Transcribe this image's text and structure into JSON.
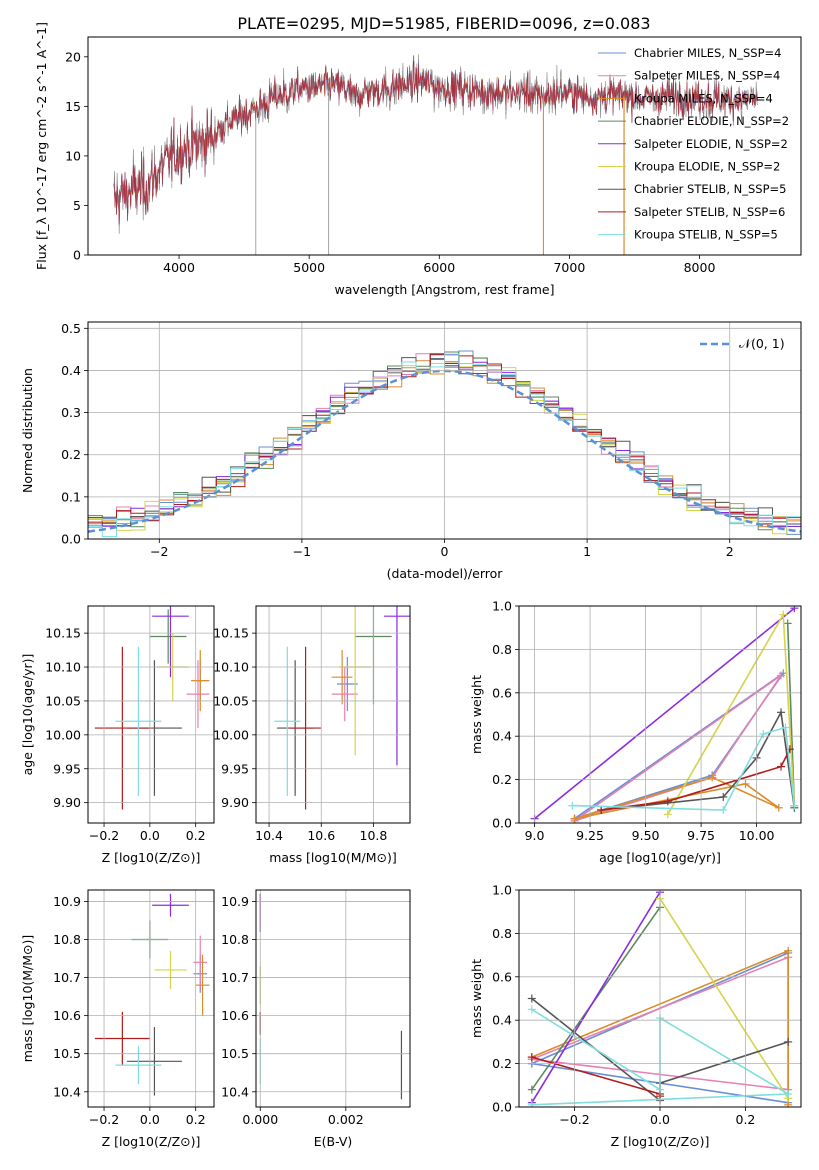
{
  "figure_title": "PLATE=0295, MJD=51985, FIBERID=0096, z=0.083",
  "colors": {
    "chabrier_miles": "#6a8fd6",
    "salpeter_miles": "#e87fb2",
    "kroupa_miles": "#d98c2a",
    "chabrier_elodie": "#5c8a5c",
    "salpeter_elodie": "#8a2be2",
    "kroupa_elodie": "#d4d44a",
    "chabrier_stelib": "#555555",
    "salpeter_stelib": "#b01e1e",
    "kroupa_stelib": "#7fdedf",
    "normal_curve": "#5b8fd6",
    "grid": "#b0b0b0"
  },
  "chart_data": [
    {
      "id": "spectrum",
      "type": "line",
      "title": "PLATE=0295, MJD=51985, FIBERID=0096, z=0.083",
      "xlabel": "wavelength [Angstrom, rest frame]",
      "ylabel": "Flux [f_λ 10^-17 erg cm^-2 s^-1 A^-1]",
      "xlim": [
        3300,
        8780
      ],
      "ylim": [
        0,
        22
      ],
      "xticks": [
        "4000",
        "5000",
        "6000",
        "7000",
        "8000"
      ],
      "yticks": [
        "0",
        "5",
        "10",
        "15",
        "20"
      ],
      "grid": false,
      "legend_position": "right",
      "legend": [
        {
          "label": "Chabrier MILES, N_SSP=4",
          "color_key": "chabrier_miles"
        },
        {
          "label": "Salpeter MILES, N_SSP=4",
          "color_key": "salpeter_miles"
        },
        {
          "label": "Kroupa MILES, N_SSP=4",
          "color_key": "kroupa_miles"
        },
        {
          "label": "Chabrier ELODIE, N_SSP=2",
          "color_key": "chabrier_elodie"
        },
        {
          "label": "Salpeter ELODIE, N_SSP=2",
          "color_key": "salpeter_elodie"
        },
        {
          "label": "Kroupa ELODIE, N_SSP=2",
          "color_key": "kroupa_elodie"
        },
        {
          "label": "Chabrier STELIB, N_SSP=5",
          "color_key": "chabrier_stelib"
        },
        {
          "label": "Salpeter STELIB, N_SSP=6",
          "color_key": "salpeter_stelib"
        },
        {
          "label": "Kroupa STELIB, N_SSP=5",
          "color_key": "kroupa_stelib"
        }
      ],
      "continuum": [
        [
          3500,
          5.2
        ],
        [
          3550,
          6.0
        ],
        [
          3650,
          6.5
        ],
        [
          3750,
          7.0
        ],
        [
          3850,
          8.5
        ],
        [
          3950,
          10.0
        ],
        [
          4050,
          10.8
        ],
        [
          4150,
          11.3
        ],
        [
          4250,
          12.0
        ],
        [
          4350,
          13.2
        ],
        [
          4450,
          13.8
        ],
        [
          4550,
          14.5
        ],
        [
          4650,
          15.2
        ],
        [
          4750,
          16.0
        ],
        [
          4850,
          16.4
        ],
        [
          4950,
          16.9
        ],
        [
          5050,
          16.8
        ],
        [
          5150,
          17.2
        ],
        [
          5250,
          17.0
        ],
        [
          5350,
          16.0
        ],
        [
          5450,
          16.5
        ],
        [
          5550,
          16.6
        ],
        [
          5650,
          17.0
        ],
        [
          5750,
          17.2
        ],
        [
          5850,
          17.6
        ],
        [
          5950,
          17.1
        ],
        [
          6050,
          16.8
        ],
        [
          6150,
          16.9
        ],
        [
          6250,
          16.6
        ],
        [
          6350,
          16.4
        ],
        [
          6450,
          16.5
        ],
        [
          6550,
          16.2
        ],
        [
          6650,
          16.6
        ],
        [
          6750,
          16.0
        ],
        [
          6850,
          16.2
        ],
        [
          6950,
          16.4
        ],
        [
          7050,
          16.3
        ],
        [
          7150,
          15.9
        ],
        [
          7250,
          16.0
        ],
        [
          7350,
          16.2
        ],
        [
          7450,
          16.1
        ],
        [
          7550,
          15.8
        ],
        [
          7650,
          15.9
        ],
        [
          7750,
          16.1
        ],
        [
          7850,
          16.0
        ],
        [
          7950,
          15.8
        ],
        [
          8050,
          15.9
        ],
        [
          8150,
          15.7
        ],
        [
          8250,
          15.7
        ],
        [
          8350,
          15.6
        ],
        [
          8450,
          15.8
        ]
      ],
      "noise_amplitude": 1.3,
      "dropouts": [
        [
          4590,
          0
        ],
        [
          5150,
          0
        ],
        [
          6800,
          0
        ],
        [
          7420,
          0
        ]
      ]
    },
    {
      "id": "residuals",
      "type": "area",
      "xlabel": "(data-model)/error",
      "ylabel": "Normed distribution",
      "xlim": [
        -2.5,
        2.5
      ],
      "ylim": [
        0,
        0.515
      ],
      "xticks": [
        "−2",
        "−1",
        "0",
        "1",
        "2"
      ],
      "yticks": [
        "0.0",
        "0.1",
        "0.2",
        "0.3",
        "0.4",
        "0.5"
      ],
      "grid": true,
      "legend_position": "top-right",
      "legend": [
        {
          "label": "𝒩(0, 1)",
          "color_key": "normal_curve",
          "style": "dashed"
        }
      ],
      "bin_width": 0.1
    },
    {
      "id": "age-vs-Z",
      "type": "scatter",
      "xlabel": "Z [log10(Z/Z⊙)]",
      "ylabel": "age  [log10(age/yr)]",
      "xlim": [
        -0.27,
        0.28
      ],
      "ylim": [
        9.87,
        10.19
      ],
      "xticks": [
        "−0.2",
        "0.0",
        "0.2"
      ],
      "yticks": [
        "9.90",
        "9.95",
        "10.00",
        "10.05",
        "10.10",
        "10.15"
      ],
      "grid": true,
      "points": [
        {
          "color_key": "chabrier_miles",
          "x": 0.22,
          "y": 10.08,
          "xerr": 0.03,
          "yerr": 0.03
        },
        {
          "color_key": "salpeter_miles",
          "x": 0.21,
          "y": 10.06,
          "xerr": 0.05,
          "yerr": 0.05
        },
        {
          "color_key": "kroupa_miles",
          "x": 0.22,
          "y": 10.08,
          "xerr": 0.04,
          "yerr": 0.045
        },
        {
          "color_key": "chabrier_elodie",
          "x": 0.08,
          "y": 10.145,
          "xerr": 0.08,
          "yerr": 0.04
        },
        {
          "color_key": "salpeter_elodie",
          "x": 0.09,
          "y": 10.175,
          "xerr": 0.08,
          "yerr": 0.09
        },
        {
          "color_key": "kroupa_elodie",
          "x": 0.1,
          "y": 10.1,
          "xerr": 0.07,
          "yerr": 0.05
        },
        {
          "color_key": "chabrier_stelib",
          "x": 0.02,
          "y": 10.01,
          "xerr": 0.12,
          "yerr": 0.1
        },
        {
          "color_key": "salpeter_stelib",
          "x": -0.12,
          "y": 10.01,
          "xerr": 0.12,
          "yerr": 0.12
        },
        {
          "color_key": "kroupa_stelib",
          "x": -0.05,
          "y": 10.02,
          "xerr": 0.1,
          "yerr": 0.11
        }
      ]
    },
    {
      "id": "age-vs-mass",
      "type": "scatter",
      "xlabel": "mass [log10(M/M⊙)]",
      "ylabel": "",
      "xlim": [
        10.35,
        10.94
      ],
      "ylim": [
        9.87,
        10.19
      ],
      "xticks": [
        "10.4",
        "10.6",
        "10.8"
      ],
      "yticks": [
        "9.90",
        "9.95",
        "10.00",
        "10.05",
        "10.10",
        "10.15"
      ],
      "grid": true,
      "points": [
        {
          "color_key": "chabrier_miles",
          "x": 10.7,
          "y": 10.075,
          "xerr": 0.04,
          "yerr": 0.04
        },
        {
          "color_key": "salpeter_miles",
          "x": 10.69,
          "y": 10.06,
          "xerr": 0.05,
          "yerr": 0.04
        },
        {
          "color_key": "kroupa_miles",
          "x": 10.68,
          "y": 10.085,
          "xerr": 0.04,
          "yerr": 0.04
        },
        {
          "color_key": "chabrier_elodie",
          "x": 10.8,
          "y": 10.145,
          "xerr": 0.07,
          "yerr": 0.1
        },
        {
          "color_key": "salpeter_elodie",
          "x": 10.89,
          "y": 10.175,
          "xerr": 0.05,
          "yerr": 0.22
        },
        {
          "color_key": "kroupa_elodie",
          "x": 10.73,
          "y": 10.1,
          "xerr": 0.06,
          "yerr": 0.13
        },
        {
          "color_key": "chabrier_stelib",
          "x": 10.5,
          "y": 10.01,
          "xerr": 0.07,
          "yerr": 0.1
        },
        {
          "color_key": "salpeter_stelib",
          "x": 10.54,
          "y": 10.01,
          "xerr": 0.06,
          "yerr": 0.12
        },
        {
          "color_key": "kroupa_stelib",
          "x": 10.47,
          "y": 10.02,
          "xerr": 0.05,
          "yerr": 0.11
        }
      ]
    },
    {
      "id": "massweight-vs-age",
      "type": "line",
      "xlabel": "age  [log10(age/yr)]",
      "ylabel": "mass weight",
      "xlim": [
        8.93,
        10.2
      ],
      "ylim": [
        0,
        1
      ],
      "xticks": [
        "9.0",
        "9.25",
        "9.50",
        "9.75",
        "10.00"
      ],
      "yticks": [
        "0.0",
        "0.2",
        "0.4",
        "0.6",
        "0.8",
        "1.0"
      ],
      "grid": true,
      "series": [
        {
          "color_key": "chabrier_miles",
          "x": [
            9.18,
            9.8,
            10.12,
            9.18
          ],
          "y": [
            0.02,
            0.22,
            0.69,
            0.02
          ]
        },
        {
          "color_key": "salpeter_miles",
          "x": [
            9.18,
            9.8,
            10.11,
            9.18
          ],
          "y": [
            0.01,
            0.21,
            0.68,
            0.01
          ]
        },
        {
          "color_key": "kroupa_miles",
          "x": [
            9.18,
            9.8,
            10.1,
            9.95,
            9.18
          ],
          "y": [
            0.02,
            0.21,
            0.07,
            0.18,
            0.02
          ]
        },
        {
          "color_key": "chabrier_elodie",
          "x": [
            10.14,
            10.17
          ],
          "y": [
            0.92,
            0.08
          ]
        },
        {
          "color_key": "salpeter_elodie",
          "x": [
            9.0,
            10.17
          ],
          "y": [
            0.02,
            0.99
          ]
        },
        {
          "color_key": "kroupa_elodie",
          "x": [
            9.6,
            10.12,
            10.17
          ],
          "y": [
            0.04,
            0.96,
            0.08
          ]
        },
        {
          "color_key": "chabrier_stelib",
          "x": [
            9.3,
            9.85,
            10.0,
            10.11,
            10.17
          ],
          "y": [
            0.06,
            0.12,
            0.3,
            0.51,
            0.07
          ]
        },
        {
          "color_key": "salpeter_stelib",
          "x": [
            9.3,
            9.6,
            10.11,
            10.15
          ],
          "y": [
            0.06,
            0.1,
            0.26,
            0.34
          ]
        },
        {
          "color_key": "kroupa_stelib",
          "x": [
            9.17,
            9.85,
            10.03,
            10.13,
            10.17
          ],
          "y": [
            0.08,
            0.06,
            0.41,
            0.44,
            0.08
          ]
        }
      ]
    },
    {
      "id": "mass-vs-Z",
      "type": "scatter",
      "xlabel": "Z [log10(Z/Z⊙)]",
      "ylabel": "mass [log10(M/M⊙)]",
      "xlim": [
        -0.27,
        0.28
      ],
      "ylim": [
        10.36,
        10.93
      ],
      "xticks": [
        "−0.2",
        "0.0",
        "0.2"
      ],
      "yticks": [
        "10.4",
        "10.5",
        "10.6",
        "10.7",
        "10.8",
        "10.9"
      ],
      "grid": true,
      "points": [
        {
          "color_key": "chabrier_miles",
          "x": 0.22,
          "y": 10.71,
          "xerr": 0.03,
          "yerr": 0.05
        },
        {
          "color_key": "salpeter_miles",
          "x": 0.22,
          "y": 10.74,
          "xerr": 0.03,
          "yerr": 0.07
        },
        {
          "color_key": "kroupa_miles",
          "x": 0.23,
          "y": 10.68,
          "xerr": 0.03,
          "yerr": 0.08
        },
        {
          "color_key": "chabrier_elodie",
          "x": -0.0,
          "y": 10.8,
          "xerr": 0.08,
          "yerr": 0.05
        },
        {
          "color_key": "salpeter_elodie",
          "x": 0.09,
          "y": 10.89,
          "xerr": 0.08,
          "yerr": 0.03
        },
        {
          "color_key": "kroupa_elodie",
          "x": 0.09,
          "y": 10.72,
          "xerr": 0.07,
          "yerr": 0.05
        },
        {
          "color_key": "chabrier_stelib",
          "x": 0.02,
          "y": 10.48,
          "xerr": 0.12,
          "yerr": 0.09
        },
        {
          "color_key": "salpeter_stelib",
          "x": -0.12,
          "y": 10.54,
          "xerr": 0.12,
          "yerr": 0.07
        },
        {
          "color_key": "kroupa_stelib",
          "x": -0.05,
          "y": 10.47,
          "xerr": 0.1,
          "yerr": 0.05
        }
      ]
    },
    {
      "id": "mass-vs-ebv",
      "type": "scatter",
      "xlabel": "E(B-V)",
      "ylabel": "",
      "xlim": [
        -0.0001,
        0.0035
      ],
      "ylim": [
        10.36,
        10.93
      ],
      "xticks": [
        "0.000",
        "0.002"
      ],
      "yticks": [
        "10.4",
        "10.5",
        "10.6",
        "10.7",
        "10.8",
        "10.9"
      ],
      "grid": true,
      "points": [
        {
          "color_key": "salpeter_elodie",
          "x": 0.0,
          "y": 10.87,
          "xerr": 0,
          "yerr": 0.05
        },
        {
          "color_key": "kroupa_elodie",
          "x": 0.0,
          "y": 10.68,
          "xerr": 0,
          "yerr": 0.05
        },
        {
          "color_key": "salpeter_stelib",
          "x": 0.0,
          "y": 10.58,
          "xerr": 0,
          "yerr": 0.03
        },
        {
          "color_key": "kroupa_stelib",
          "x": 0.0,
          "y": 10.48,
          "xerr": 0,
          "yerr": 0.06
        },
        {
          "color_key": "chabrier_stelib",
          "x": 0.0033,
          "y": 10.47,
          "xerr": 0,
          "yerr": 0.09
        }
      ]
    },
    {
      "id": "massweight-vs-Z",
      "type": "line",
      "xlabel": "Z [log10(Z/Z⊙)]",
      "ylabel": "mass weight",
      "xlim": [
        -0.33,
        0.33
      ],
      "ylim": [
        0,
        1
      ],
      "xticks": [
        "−0.2",
        "0.0",
        "0.2"
      ],
      "yticks": [
        "0.0",
        "0.2",
        "0.4",
        "0.6",
        "0.8",
        "1.0"
      ],
      "grid": true,
      "series": [
        {
          "color_key": "chabrier_miles",
          "x": [
            -0.3,
            0.3,
            0.3,
            -0.3
          ],
          "y": [
            0.2,
            0.71,
            0.02,
            0.2
          ]
        },
        {
          "color_key": "salpeter_miles",
          "x": [
            -0.3,
            0.3,
            0.3,
            -0.3
          ],
          "y": [
            0.22,
            0.69,
            0.08,
            0.22
          ]
        },
        {
          "color_key": "kroupa_miles",
          "x": [
            -0.3,
            0.3,
            0.3
          ],
          "y": [
            0.23,
            0.72,
            0.01
          ]
        },
        {
          "color_key": "chabrier_elodie",
          "x": [
            -0.3,
            0.0
          ],
          "y": [
            0.08,
            0.92
          ]
        },
        {
          "color_key": "salpeter_elodie",
          "x": [
            -0.3,
            0.0
          ],
          "y": [
            0.02,
            0.99
          ]
        },
        {
          "color_key": "kroupa_elodie",
          "x": [
            0.0,
            0.3
          ],
          "y": [
            0.96,
            0.04
          ]
        },
        {
          "color_key": "chabrier_stelib",
          "x": [
            -0.3,
            0.0,
            0.0,
            0.3
          ],
          "y": [
            0.5,
            0.03,
            0.11,
            0.3
          ]
        },
        {
          "color_key": "salpeter_stelib",
          "x": [
            -0.3,
            0.0,
            0.0
          ],
          "y": [
            0.23,
            0.06,
            0.05
          ]
        },
        {
          "color_key": "kroupa_stelib",
          "x": [
            -0.3,
            0.0,
            0.0,
            0.3,
            -0.3
          ],
          "y": [
            0.45,
            0.08,
            0.41,
            0.06,
            0.01
          ]
        }
      ]
    }
  ]
}
